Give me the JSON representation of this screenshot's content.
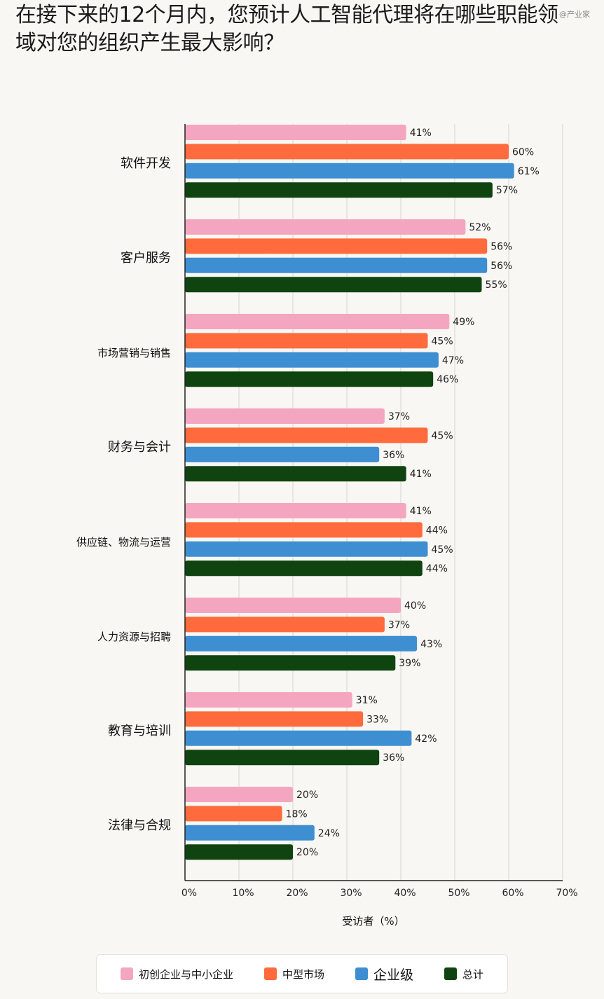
{
  "page": {
    "watermark": "@产业家"
  },
  "chart_data": {
    "type": "bar",
    "orientation": "horizontal",
    "title": "在接下来的12个月内，您预计人工智能代理将在哪些职能领域对您的组织产生最大影响？",
    "xlabel": "受访者（%）",
    "ylabel": "",
    "xlim": [
      0,
      70
    ],
    "xticks": [
      0,
      10,
      20,
      30,
      40,
      50,
      60,
      70
    ],
    "tick_suffix": "%",
    "grid": "vertical",
    "legend_position": "bottom",
    "categories": [
      "软件开发",
      "客户服务",
      "市场营销与销售",
      "财务与会计",
      "供应链、物流与运营",
      "人力资源与招聘",
      "教育与培训",
      "法律与合规"
    ],
    "series": [
      {
        "name": "初创企业与中小企业",
        "color": "#f4a6c0",
        "values": [
          41,
          52,
          49,
          37,
          41,
          40,
          31,
          20
        ]
      },
      {
        "name": "中型市场",
        "color": "#ff6b3d",
        "values": [
          60,
          56,
          45,
          45,
          44,
          37,
          33,
          18
        ]
      },
      {
        "name": "企业级",
        "color": "#3d8fd1",
        "values": [
          61,
          56,
          47,
          36,
          45,
          43,
          42,
          24
        ]
      },
      {
        "name": "总计",
        "color": "#0f4410",
        "values": [
          57,
          55,
          46,
          41,
          44,
          39,
          36,
          20
        ]
      }
    ]
  }
}
